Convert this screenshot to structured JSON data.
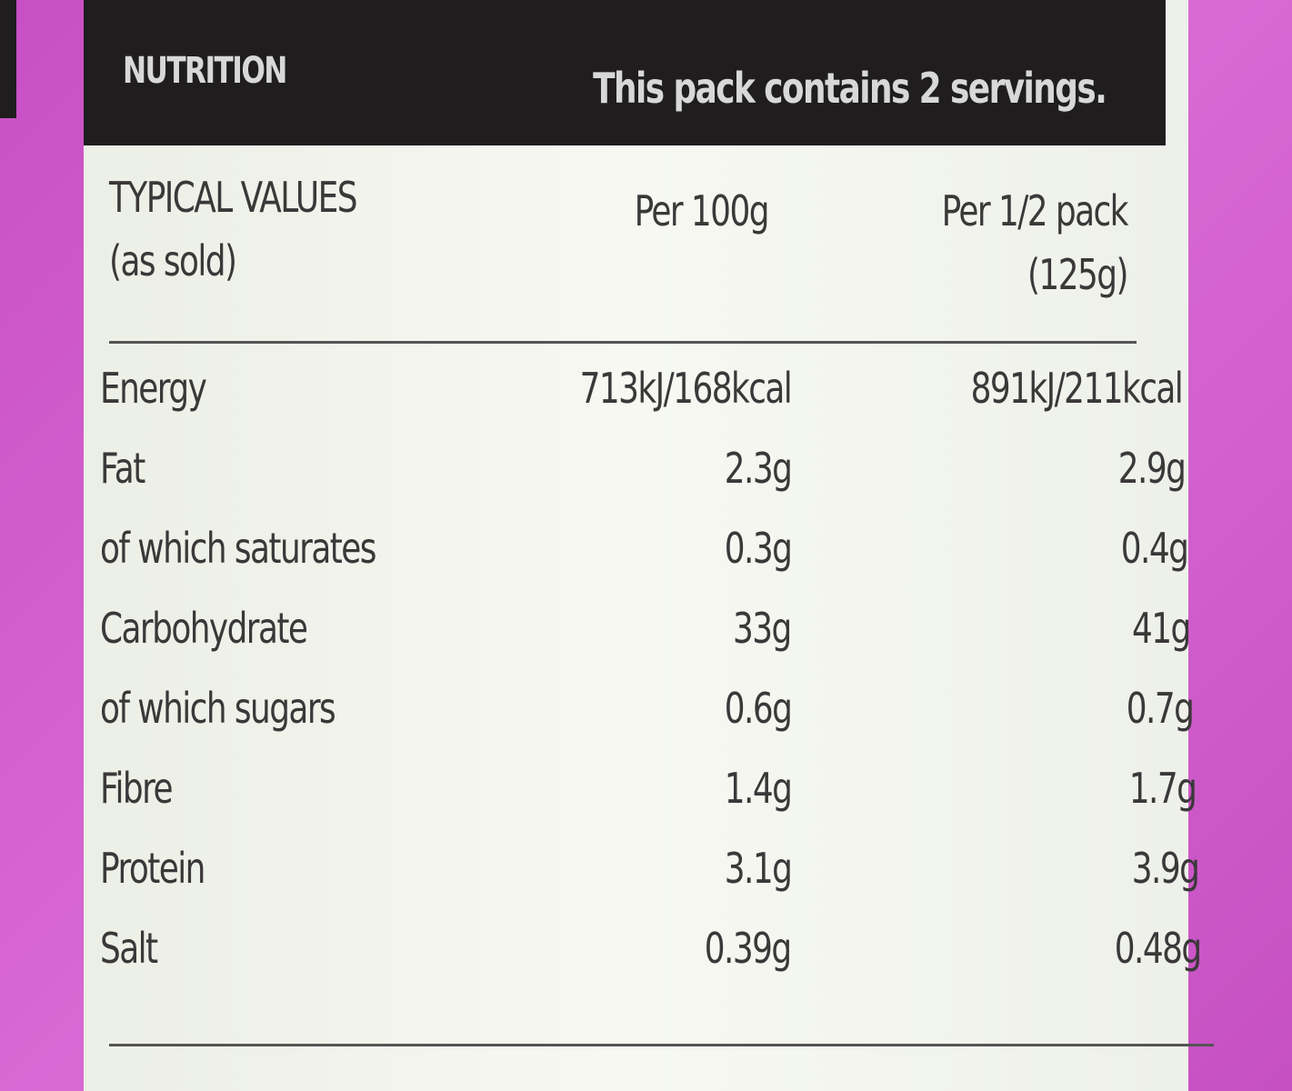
{
  "header": {
    "title": "NUTRITION",
    "note": "This pack contains 2 servings."
  },
  "table": {
    "columns": [
      [
        "TYPICAL VALUES",
        "(as sold)"
      ],
      [
        "Per 100g"
      ],
      [
        "Per 1/2 pack",
        "(125g)"
      ]
    ],
    "rows": [
      [
        "Energy",
        "713kJ/168kcal",
        "891kJ/211kcal"
      ],
      [
        "Fat",
        "2.3g",
        "2.9g"
      ],
      [
        "of which saturates",
        "0.3g",
        "0.4g"
      ],
      [
        "Carbohydrate",
        "33g",
        "41g"
      ],
      [
        "of which sugars",
        "0.6g",
        "0.7g"
      ],
      [
        "Fibre",
        "1.4g",
        "1.7g"
      ],
      [
        "Protein",
        "3.1g",
        "3.9g"
      ],
      [
        "Salt",
        "0.39g",
        "0.48g"
      ]
    ]
  }
}
